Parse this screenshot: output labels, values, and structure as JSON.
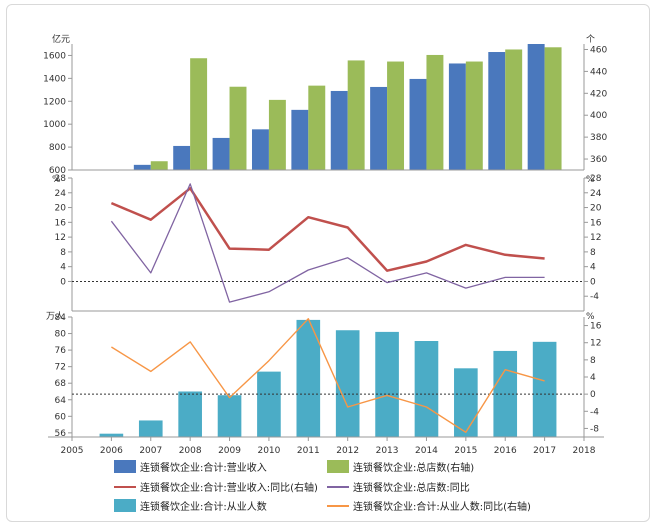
{
  "chart_data": [
    {
      "type": "bar",
      "x": [
        2006,
        2007,
        2008,
        2009,
        2010,
        2011,
        2012,
        2013,
        2014,
        2015,
        2016,
        2017
      ],
      "y_unit_left": "亿元",
      "y_unit_right": "个",
      "ylim_left": [
        600,
        1700
      ],
      "yticks_left": [
        600,
        800,
        1000,
        1200,
        1400,
        1600
      ],
      "ylim_right": [
        350,
        465
      ],
      "yticks_right": [
        360,
        380,
        400,
        420,
        440,
        460
      ],
      "series": [
        {
          "name": "连锁餐饮企业:合计:营业收入",
          "axis": "left",
          "color": "#4a78bd",
          "values": [
            550,
            645,
            810,
            880,
            955,
            1125,
            1290,
            1325,
            1395,
            1530,
            1630,
            1745
          ]
        },
        {
          "name": "连锁餐饮企业:总店数(右轴)",
          "axis": "right",
          "color": "#9bbb59",
          "values": [
            350,
            358,
            452,
            426,
            414,
            427,
            450,
            449,
            455,
            449,
            460,
            462
          ]
        }
      ]
    },
    {
      "type": "line",
      "x": [
        2006,
        2007,
        2008,
        2009,
        2010,
        2011,
        2012,
        2013,
        2014,
        2015,
        2016,
        2017
      ],
      "y_unit_left": "%",
      "y_unit_right": "%",
      "ylim": [
        -8,
        28
      ],
      "yticks": [
        -4,
        0,
        4,
        8,
        12,
        16,
        20,
        24,
        28
      ],
      "yticks_left": [
        0,
        4,
        8,
        12,
        16,
        20,
        24,
        28
      ],
      "zero_line": "dotted",
      "series": [
        {
          "name": "连锁餐饮企业:合计:营业收入:同比(右轴)",
          "color": "#c0504d",
          "values": [
            21.2,
            16.7,
            25.2,
            8.9,
            8.6,
            17.4,
            14.6,
            2.9,
            5.4,
            9.9,
            7.2,
            6.2
          ]
        },
        {
          "name": "连锁餐饮企业:总店数:同比",
          "color": "#8064a2",
          "values": [
            16.3,
            2.3,
            26.4,
            -5.6,
            -2.8,
            3.1,
            6.4,
            -0.3,
            2.3,
            -1.8,
            1.1,
            1.1
          ]
        }
      ]
    },
    {
      "type": "bar",
      "x": [
        2006,
        2007,
        2008,
        2009,
        2010,
        2011,
        2012,
        2013,
        2014,
        2015,
        2016,
        2017
      ],
      "y_unit_left": "万人",
      "y_unit_right": "%",
      "ylim_left": [
        55,
        84
      ],
      "yticks_left": [
        56,
        60,
        64,
        68,
        72,
        76,
        80,
        84
      ],
      "ylim_right": [
        -10,
        18
      ],
      "yticks_right": [
        -8,
        -4,
        0,
        4,
        8,
        12,
        16
      ],
      "zero_line": "dotted",
      "series": [
        {
          "name": "连锁餐饮企业:合计:从业人数",
          "axis": "left",
          "color": "#4bacc6",
          "values": [
            55.8,
            59.0,
            66.0,
            65.1,
            70.8,
            83.3,
            80.8,
            80.4,
            78.2,
            71.6,
            75.8,
            78.0
          ]
        },
        {
          "name": "连锁餐饮企业:合计:从业人数:同比(右轴)",
          "axis": "right",
          "color": "#f79646",
          "values": [
            11.0,
            5.3,
            12.2,
            -0.8,
            7.8,
            17.6,
            -3.0,
            -0.3,
            -3.0,
            -8.9,
            5.7,
            3.1
          ]
        }
      ]
    }
  ],
  "x_axis": {
    "min": 2005,
    "max": 2018,
    "ticks": [
      2005,
      2006,
      2007,
      2008,
      2009,
      2010,
      2011,
      2012,
      2013,
      2014,
      2015,
      2016,
      2017,
      2018
    ]
  },
  "legend": [
    {
      "label": "连锁餐饮企业:合计:营业收入",
      "kind": "bar",
      "color": "#4a78bd"
    },
    {
      "label": "连锁餐饮企业:总店数(右轴)",
      "kind": "bar",
      "color": "#9bbb59"
    },
    {
      "label": "连锁餐饮企业:合计:营业收入:同比(右轴)",
      "kind": "line",
      "color": "#c0504d"
    },
    {
      "label": "连锁餐饮企业:总店数:同比",
      "kind": "line",
      "color": "#8064a2"
    },
    {
      "label": "连锁餐饮企业:合计:从业人数",
      "kind": "bar",
      "color": "#4bacc6"
    },
    {
      "label": "连锁餐饮企业:合计:从业人数:同比(右轴)",
      "kind": "line",
      "color": "#f79646"
    }
  ]
}
